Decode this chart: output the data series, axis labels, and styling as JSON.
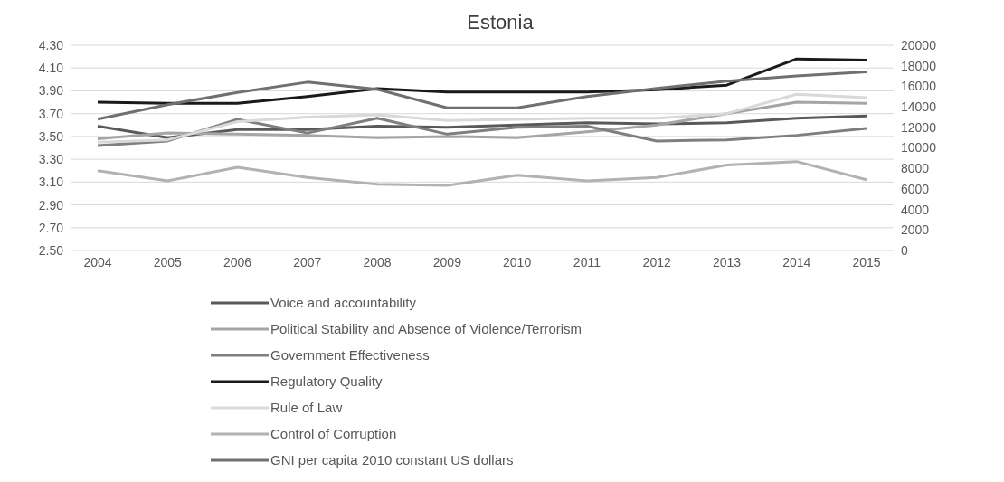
{
  "chart_data": {
    "type": "line",
    "title": "Estonia",
    "categories": [
      "2004",
      "2005",
      "2006",
      "2007",
      "2008",
      "2009",
      "2010",
      "2011",
      "2012",
      "2013",
      "2014",
      "2015"
    ],
    "series": [
      {
        "name": "Voice and accountability",
        "color": "#595959",
        "values": [
          3.59,
          3.49,
          3.56,
          3.56,
          3.59,
          3.58,
          3.6,
          3.62,
          3.61,
          3.62,
          3.66,
          3.68
        ]
      },
      {
        "name": "Political Stability and Absence of Violence/Terrorism",
        "color": "#a5a5a5",
        "values": [
          3.48,
          3.53,
          3.52,
          3.51,
          3.49,
          3.5,
          3.49,
          3.54,
          3.6,
          3.7,
          3.8,
          3.79
        ]
      },
      {
        "name": "Government Effectiveness",
        "color": "#7f7f7f",
        "values": [
          3.42,
          3.46,
          3.65,
          3.53,
          3.66,
          3.52,
          3.58,
          3.59,
          3.46,
          3.47,
          3.51,
          3.57
        ]
      },
      {
        "name": "Regulatory Quality",
        "color": "#1a1a1a",
        "values": [
          3.8,
          3.79,
          3.79,
          3.85,
          3.92,
          3.89,
          3.89,
          3.89,
          3.91,
          3.95,
          4.18,
          4.17
        ]
      },
      {
        "name": "Rule of Law",
        "color": "#d9d9d9",
        "values": [
          3.45,
          3.47,
          3.63,
          3.67,
          3.69,
          3.64,
          3.65,
          3.66,
          3.66,
          3.7,
          3.87,
          3.84
        ]
      },
      {
        "name": "Control of Corruption",
        "color": "#b2b2b2",
        "values": [
          3.2,
          3.11,
          3.23,
          3.14,
          3.08,
          3.07,
          3.16,
          3.11,
          3.14,
          3.25,
          3.28,
          3.12
        ]
      },
      {
        "name": "GNI per capita 2010 constant US dollars",
        "color": "#707070",
        "axis": "y2",
        "values": [
          12800,
          14200,
          15400,
          16400,
          15700,
          13900,
          13900,
          15000,
          15800,
          16500,
          17000,
          17400
        ]
      }
    ],
    "ylim": [
      2.5,
      4.3
    ],
    "yticks": [
      {
        "value": 2.5,
        "label": "2.50"
      },
      {
        "value": 2.7,
        "label": "2.70"
      },
      {
        "value": 2.9,
        "label": "2.90"
      },
      {
        "value": 3.1,
        "label": "3.10"
      },
      {
        "value": 3.3,
        "label": "3.30"
      },
      {
        "value": 3.5,
        "label": "3.50"
      },
      {
        "value": 3.7,
        "label": "3.70"
      },
      {
        "value": 3.9,
        "label": "3.90"
      },
      {
        "value": 4.1,
        "label": "4.10"
      },
      {
        "value": 4.3,
        "label": "4.30"
      }
    ],
    "y2lim": [
      0,
      20000
    ],
    "y2ticks": [
      0,
      2000,
      4000,
      6000,
      8000,
      10000,
      12000,
      14000,
      16000,
      18000,
      20000
    ],
    "grid": "y",
    "legend": "bottom",
    "marker": "none",
    "line_style": "solid"
  }
}
